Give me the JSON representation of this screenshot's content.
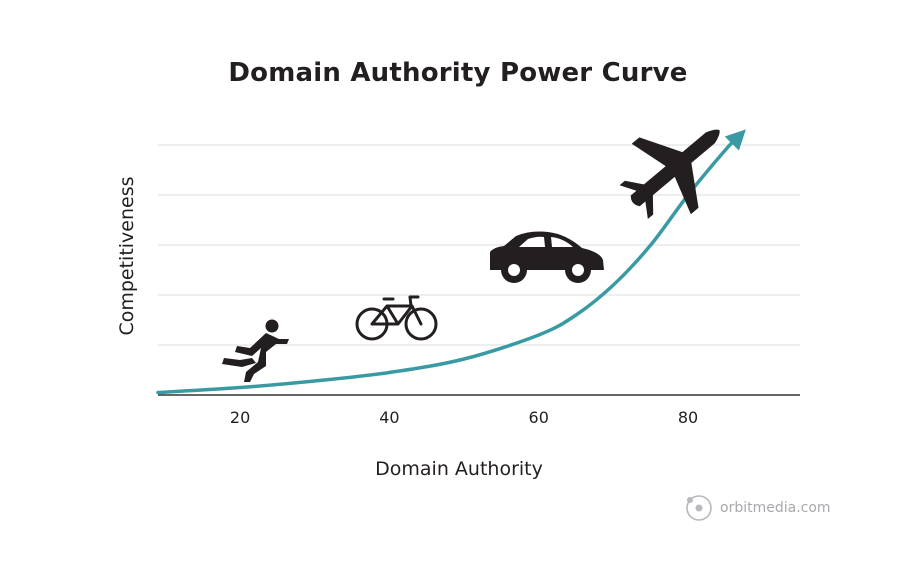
{
  "chart_data": {
    "type": "line",
    "title": "Domain Authority Power Curve",
    "xlabel": "Domain Authority",
    "ylabel": "Competitiveness",
    "x_ticks": [
      20,
      40,
      60,
      80
    ],
    "xlim": [
      9,
      95
    ],
    "ylim": [
      0,
      5
    ],
    "grid": true,
    "series": [
      {
        "x": [
          9,
          20,
          30,
          40,
          50,
          60,
          65,
          70,
          75,
          80,
          85,
          87
        ],
        "y": [
          0.05,
          0.15,
          0.28,
          0.45,
          0.72,
          1.2,
          1.6,
          2.2,
          3.0,
          4.0,
          4.9,
          5.2
        ]
      }
    ],
    "annotations": [
      {
        "icon": "runner-icon",
        "x": 21,
        "y": 0.8
      },
      {
        "icon": "bicycle-icon",
        "x": 39,
        "y": 1.5
      },
      {
        "icon": "car-icon",
        "x": 57,
        "y": 2.7
      },
      {
        "icon": "airplane-icon",
        "x": 76,
        "y": 4.5
      }
    ],
    "colors": {
      "curve": "#3a9aa3",
      "grid": "#dcdcdc",
      "axis": "#333333",
      "icon": "#231f20"
    }
  },
  "watermark": {
    "text": "orbitmedia.com",
    "icon": "orbit-logo-icon"
  }
}
